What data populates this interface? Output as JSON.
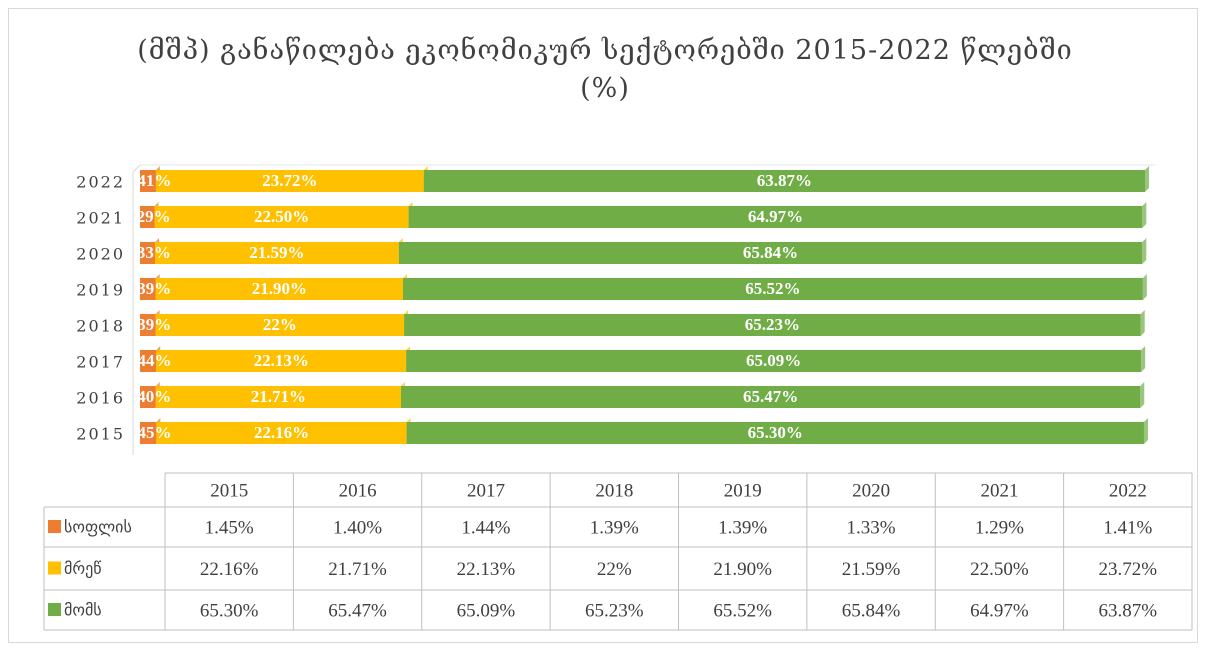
{
  "chart_data": {
    "type": "stacked-bar-horizontal",
    "title": "(მშპ) განაწილება ეკონომიკურ სექტორებში 2015-2022 წლებში (%)",
    "categories": [
      "2015",
      "2016",
      "2017",
      "2018",
      "2019",
      "2020",
      "2021",
      "2022"
    ],
    "xlim": [
      0,
      89
    ],
    "series": [
      {
        "name": "სოფლის",
        "color": "#ED7D31",
        "values": [
          1.45,
          1.4,
          1.44,
          1.39,
          1.39,
          1.33,
          1.29,
          1.41
        ],
        "value_labels": [
          "1.45%",
          "1.40%",
          "1.44%",
          "1.39%",
          "1.39%",
          "1.33%",
          "1.29%",
          "1.41%"
        ]
      },
      {
        "name": "მრეწ",
        "color": "#FFC000",
        "values": [
          22.16,
          21.71,
          22.13,
          22,
          21.9,
          21.59,
          22.5,
          23.72
        ],
        "value_labels": [
          "22.16%",
          "21.71%",
          "22.13%",
          "22%",
          "21.90%",
          "21.59%",
          "22.50%",
          "23.72%"
        ]
      },
      {
        "name": "მომს",
        "color": "#70AD47",
        "values": [
          65.3,
          65.47,
          65.09,
          65.23,
          65.52,
          65.84,
          64.97,
          63.87
        ],
        "value_labels": [
          "65.30%",
          "65.47%",
          "65.09%",
          "65.23%",
          "65.52%",
          "65.84%",
          "64.97%",
          "63.87%"
        ]
      }
    ]
  }
}
